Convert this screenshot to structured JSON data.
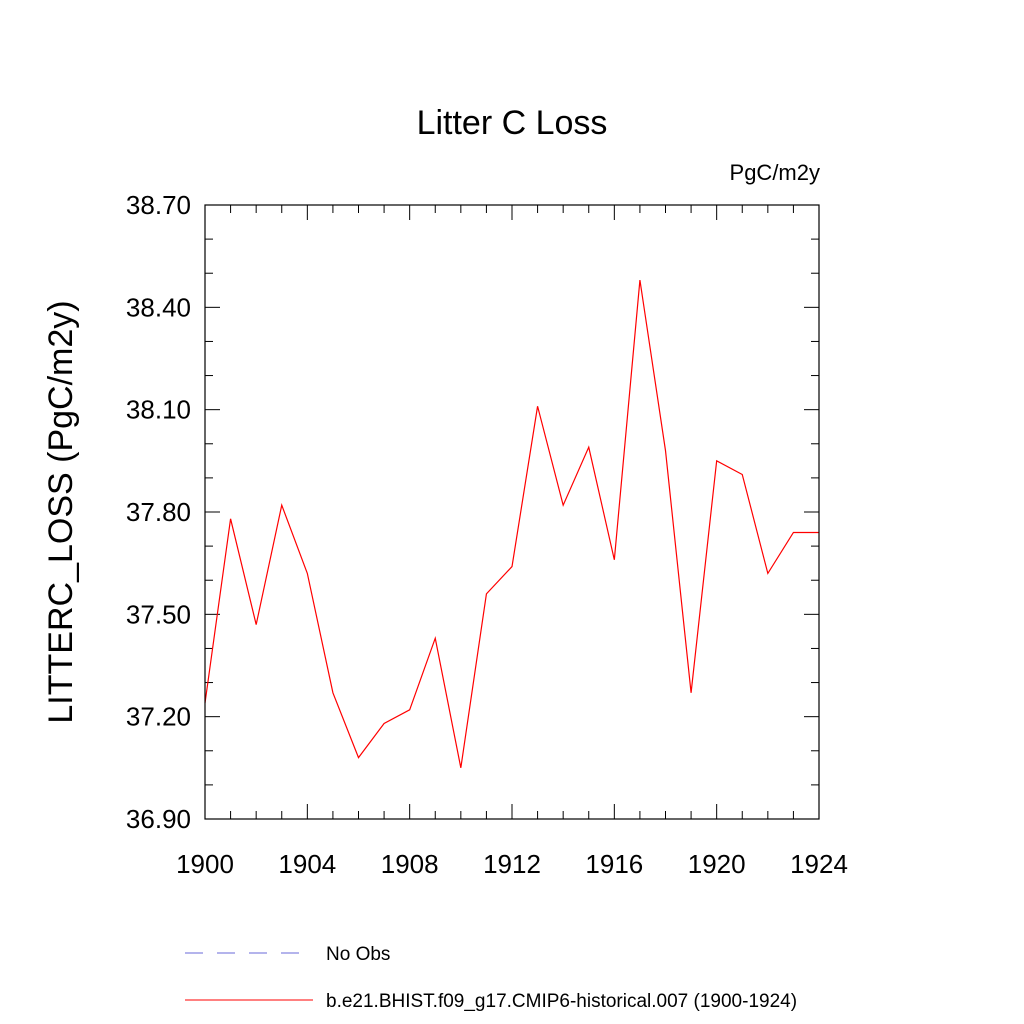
{
  "chart_data": {
    "type": "line",
    "title": "Litter C Loss",
    "units_label": "PgC/m2y",
    "ylabel": "LITTERC_LOSS  (PgC/m2y)",
    "xlabel": "",
    "xlim": [
      1900,
      1924
    ],
    "ylim": [
      36.9,
      38.7
    ],
    "x_ticks": [
      1900,
      1904,
      1908,
      1912,
      1916,
      1920,
      1924
    ],
    "x_tick_labels": [
      "1900",
      "1904",
      "1908",
      "1912",
      "1916",
      "1920",
      "1924"
    ],
    "y_ticks": [
      36.9,
      37.2,
      37.5,
      37.8,
      38.1,
      38.4,
      38.7
    ],
    "y_tick_labels": [
      "36.90",
      "37.20",
      "37.50",
      "37.80",
      "38.10",
      "38.40",
      "38.70"
    ],
    "x_minor_step": 1,
    "y_minor_step": 0.1,
    "grid": false,
    "legend_position": "bottom",
    "series": [
      {
        "name": "b.e21.BHIST.f09_g17.CMIP6-historical.007 (1900-1924)",
        "color": "#ff0000",
        "style": "solid",
        "x": [
          1900,
          1901,
          1902,
          1903,
          1904,
          1905,
          1906,
          1907,
          1908,
          1909,
          1910,
          1911,
          1912,
          1913,
          1914,
          1915,
          1916,
          1917,
          1918,
          1919,
          1920,
          1921,
          1922,
          1923,
          1924
        ],
        "values": [
          37.24,
          37.78,
          37.47,
          37.82,
          37.62,
          37.27,
          37.08,
          37.18,
          37.22,
          37.43,
          37.05,
          37.56,
          37.64,
          38.11,
          37.82,
          37.99,
          37.66,
          38.48,
          37.98,
          37.27,
          37.95,
          37.91,
          37.62,
          37.74,
          37.74
        ]
      }
    ],
    "legend": [
      {
        "label": "No Obs",
        "color": "#6a6ad8",
        "style": "dashed"
      },
      {
        "label": "b.e21.BHIST.f09_g17.CMIP6-historical.007 (1900-1924)",
        "color": "#ff0000",
        "style": "solid"
      }
    ]
  }
}
